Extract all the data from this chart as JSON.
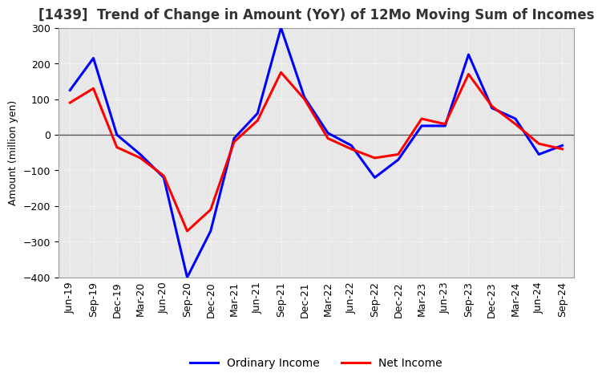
{
  "title": "[1439]  Trend of Change in Amount (YoY) of 12Mo Moving Sum of Incomes",
  "ylabel": "Amount (million yen)",
  "x_labels": [
    "Jun-19",
    "Sep-19",
    "Dec-19",
    "Mar-20",
    "Jun-20",
    "Sep-20",
    "Dec-20",
    "Mar-21",
    "Jun-21",
    "Sep-21",
    "Dec-21",
    "Mar-22",
    "Jun-22",
    "Sep-22",
    "Dec-22",
    "Mar-23",
    "Jun-23",
    "Sep-23",
    "Dec-23",
    "Mar-24",
    "Jun-24",
    "Sep-24"
  ],
  "ordinary_income": [
    125,
    215,
    0,
    -55,
    -120,
    -400,
    -270,
    -10,
    60,
    300,
    105,
    5,
    -30,
    -120,
    -70,
    25,
    25,
    225,
    75,
    45,
    -55,
    -30
  ],
  "net_income": [
    90,
    130,
    -35,
    -65,
    -115,
    -270,
    -210,
    -20,
    40,
    175,
    100,
    -10,
    -40,
    -65,
    -55,
    45,
    30,
    170,
    80,
    30,
    -25,
    -40
  ],
  "ordinary_color": "#0000ff",
  "net_color": "#ff0000",
  "ylim": [
    -400,
    300
  ],
  "yticks": [
    -400,
    -300,
    -200,
    -100,
    0,
    100,
    200,
    300
  ],
  "background_color": "#ffffff",
  "plot_bg_color": "#e8e8e8",
  "grid_color": "#ffffff",
  "zero_line_color": "#555555",
  "title_fontsize": 12,
  "axis_fontsize": 9,
  "legend_fontsize": 10,
  "line_width": 2.2
}
